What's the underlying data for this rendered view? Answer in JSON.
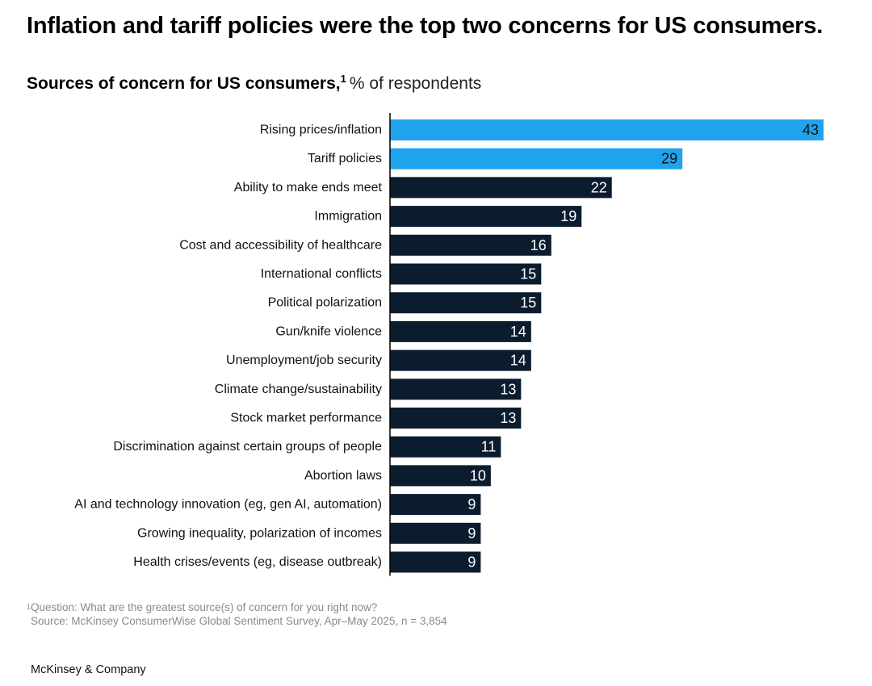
{
  "title": "Inflation and tariff policies were the top two concerns for US consumers.",
  "subtitle": {
    "text": "Sources of concern for US consumers,",
    "superscript": "1",
    "unit": "% of respondents"
  },
  "colors": {
    "highlight": "#1fa3ec",
    "default": "#0b1c2e",
    "axis": "#000000"
  },
  "chart_data": {
    "type": "bar",
    "orientation": "horizontal",
    "title": "Sources of concern for US consumers",
    "xlabel": "% of respondents",
    "ylabel": "",
    "xlim": [
      0,
      43
    ],
    "categories": [
      "Rising prices/inflation",
      "Tariff policies",
      "Ability to make ends meet",
      "Immigration",
      "Cost and accessibility of healthcare",
      "International conflicts",
      "Political polarization",
      "Gun/knife violence",
      "Unemployment/job security",
      "Climate change/sustainability",
      "Stock market performance",
      "Discrimination against certain groups of people",
      "Abortion laws",
      "AI and technology innovation (eg, gen AI, automation)",
      "Growing inequality, polarization of incomes",
      "Health crises/events (eg, disease outbreak)"
    ],
    "values": [
      43,
      29,
      22,
      19,
      16,
      15,
      15,
      14,
      14,
      13,
      13,
      11,
      10,
      9,
      9,
      9
    ],
    "highlighted": [
      true,
      true,
      false,
      false,
      false,
      false,
      false,
      false,
      false,
      false,
      false,
      false,
      false,
      false,
      false,
      false
    ]
  },
  "footnote": {
    "marker": "1",
    "question": "Question: What are the greatest source(s) of concern for you right now?",
    "source": "Source: McKinsey ConsumerWise Global Sentiment Survey, Apr–May 2025, n = 3,854"
  },
  "brand": "McKinsey & Company"
}
